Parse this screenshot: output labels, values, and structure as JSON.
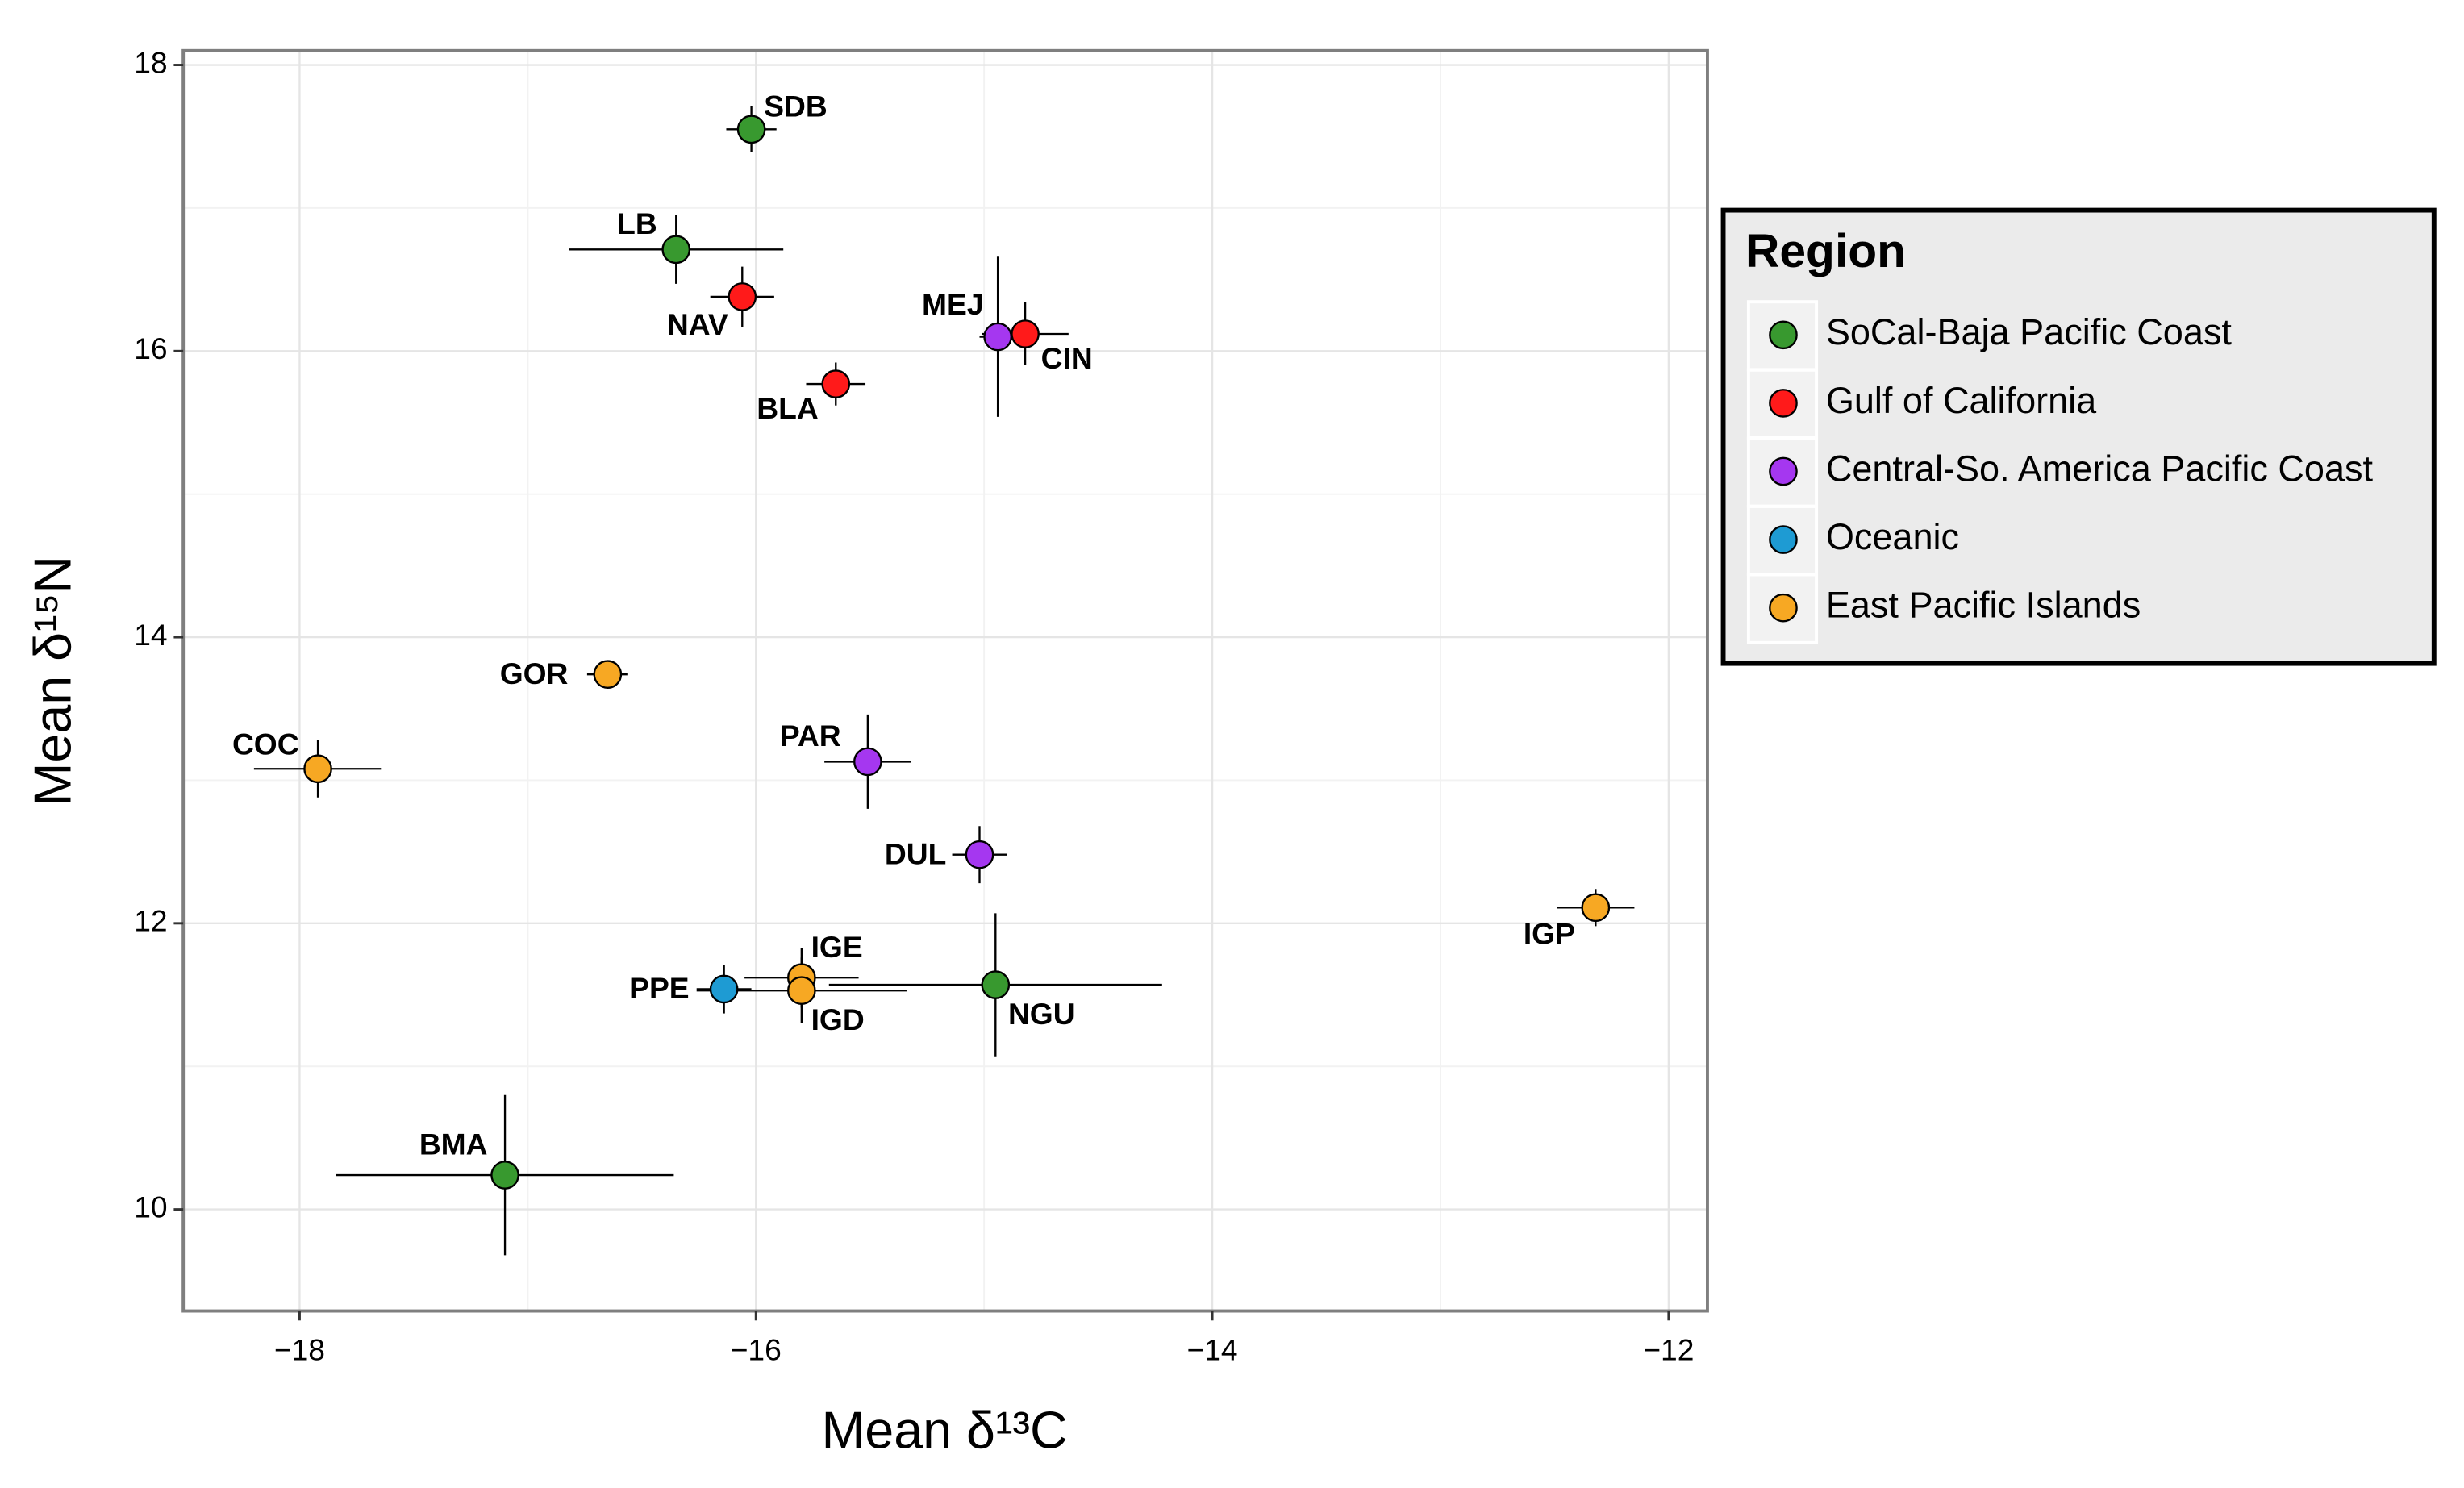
{
  "chart_data": {
    "type": "scatter",
    "xlabel": "Mean δ¹³C",
    "ylabel": "Mean δ¹⁵N",
    "legend_title": "Region",
    "legend": "right",
    "grid": true,
    "xlim": [
      -18.51,
      -11.83
    ],
    "ylim": [
      9.29,
      18.1
    ],
    "xticks": [
      {
        "value": -18,
        "label": "−18"
      },
      {
        "value": -16,
        "label": "−16"
      },
      {
        "value": -14,
        "label": "−14"
      },
      {
        "value": -12,
        "label": "−12"
      }
    ],
    "yticks": [
      10,
      12,
      14,
      16,
      18
    ],
    "series": [
      {
        "name": "SoCal-Baja Pacific Coast",
        "color": "#38992f",
        "labels": [
          "SDB",
          "LB",
          "NGU",
          "BMA"
        ],
        "x": [
          -16.02,
          -16.35,
          -14.95,
          -17.1
        ],
        "values": [
          17.55,
          16.71,
          11.57,
          10.24
        ],
        "xerr": [
          0.11,
          0.47,
          0.73,
          0.74
        ],
        "yerr": [
          0.16,
          0.24,
          0.5,
          0.56
        ]
      },
      {
        "name": "Gulf of California",
        "color": "#ff1a1a",
        "labels": [
          "NAV",
          "CIN",
          "BLA"
        ],
        "x": [
          -16.06,
          -14.82,
          -15.65
        ],
        "values": [
          16.38,
          16.12,
          15.77
        ],
        "xerr": [
          0.14,
          0.19,
          0.13
        ],
        "yerr": [
          0.21,
          0.22,
          0.15
        ]
      },
      {
        "name": "Central-So. America Pacific Coast",
        "color": "#a537f0",
        "labels": [
          "MEJ",
          "PAR",
          "DUL"
        ],
        "x": [
          -14.94,
          -15.51,
          -15.02
        ],
        "values": [
          16.1,
          13.13,
          12.48
        ],
        "xerr": [
          0.08,
          0.19,
          0.12
        ],
        "yerr": [
          0.56,
          0.33,
          0.2
        ]
      },
      {
        "name": "Oceanic",
        "color": "#1e9bd3",
        "labels": [
          "PPE"
        ],
        "x": [
          -16.14
        ],
        "values": [
          11.54
        ],
        "xerr": [
          0.12
        ],
        "yerr": [
          0.17
        ]
      },
      {
        "name": "East Pacific Islands",
        "color": "#f7a823",
        "labels": [
          "GOR",
          "COC",
          "IGP",
          "IGE",
          "IGD"
        ],
        "x": [
          -16.65,
          -17.92,
          -12.32,
          -15.8,
          -15.8
        ],
        "values": [
          13.74,
          13.08,
          12.11,
          11.62,
          11.53
        ],
        "xerr": [
          0.09,
          0.28,
          0.17,
          0.25,
          0.46
        ],
        "yerr": [
          0.08,
          0.2,
          0.13,
          0.21,
          0.23
        ]
      }
    ]
  }
}
